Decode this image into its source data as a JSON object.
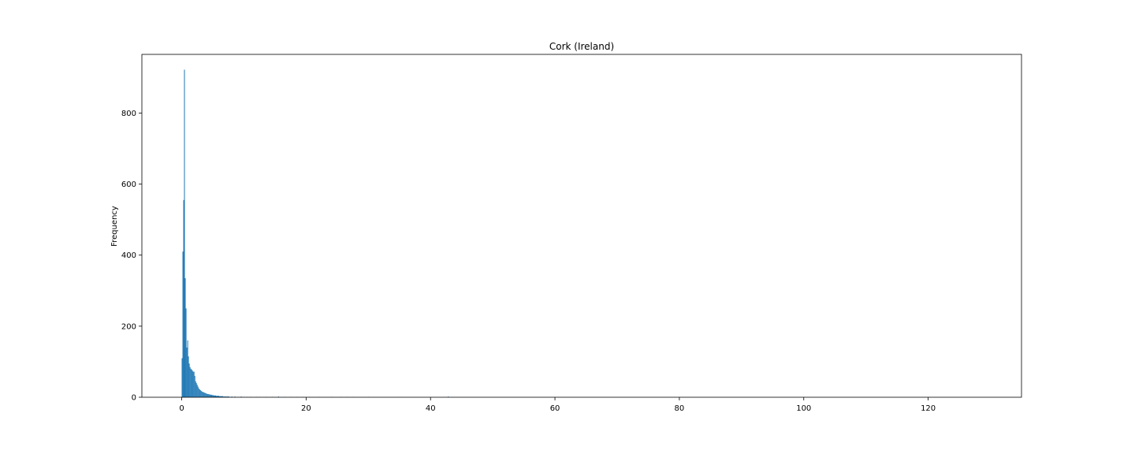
{
  "chart_data": {
    "type": "bar",
    "title": "Cork (Ireland)",
    "xlabel": "",
    "ylabel": "Frequency",
    "xlim": [
      -6.4,
      135.0
    ],
    "ylim": [
      0,
      965
    ],
    "x_ticks": [
      0,
      20,
      40,
      60,
      80,
      100,
      120
    ],
    "y_ticks": [
      0,
      200,
      400,
      600,
      800
    ],
    "grid": false,
    "bar_color": "#1f77b4",
    "bin_width": 0.128,
    "bins": [
      [
        0.0,
        110
      ],
      [
        0.13,
        410
      ],
      [
        0.26,
        555
      ],
      [
        0.38,
        922
      ],
      [
        0.51,
        335
      ],
      [
        0.64,
        250
      ],
      [
        0.77,
        140
      ],
      [
        0.9,
        160
      ],
      [
        1.02,
        115
      ],
      [
        1.15,
        95
      ],
      [
        1.28,
        85
      ],
      [
        1.41,
        80
      ],
      [
        1.54,
        78
      ],
      [
        1.66,
        75
      ],
      [
        1.79,
        72
      ],
      [
        1.92,
        72
      ],
      [
        2.05,
        60
      ],
      [
        2.18,
        45
      ],
      [
        2.3,
        40
      ],
      [
        2.43,
        35
      ],
      [
        2.56,
        30
      ],
      [
        2.69,
        25
      ],
      [
        2.82,
        22
      ],
      [
        2.94,
        20
      ],
      [
        3.07,
        18
      ],
      [
        3.2,
        16
      ],
      [
        3.33,
        15
      ],
      [
        3.46,
        14
      ],
      [
        3.58,
        13
      ],
      [
        3.71,
        12
      ],
      [
        3.84,
        11
      ],
      [
        3.97,
        10
      ],
      [
        4.1,
        9
      ],
      [
        4.22,
        9
      ],
      [
        4.35,
        8
      ],
      [
        4.48,
        8
      ],
      [
        4.61,
        7
      ],
      [
        4.74,
        7
      ],
      [
        4.86,
        6
      ],
      [
        4.99,
        6
      ],
      [
        5.12,
        5
      ],
      [
        5.25,
        5
      ],
      [
        5.38,
        5
      ],
      [
        5.5,
        4
      ],
      [
        5.63,
        4
      ],
      [
        5.76,
        4
      ],
      [
        5.89,
        4
      ],
      [
        6.02,
        3
      ],
      [
        6.14,
        3
      ],
      [
        6.27,
        3
      ],
      [
        6.4,
        3
      ],
      [
        6.53,
        3
      ],
      [
        6.66,
        2
      ],
      [
        6.78,
        2
      ],
      [
        6.91,
        2
      ],
      [
        7.04,
        2
      ],
      [
        7.17,
        2
      ],
      [
        7.3,
        2
      ],
      [
        7.42,
        2
      ],
      [
        7.55,
        2
      ],
      [
        8.0,
        2
      ],
      [
        8.5,
        2
      ],
      [
        9.0,
        1
      ],
      [
        9.5,
        2
      ],
      [
        10.0,
        1
      ],
      [
        10.5,
        1
      ],
      [
        11.0,
        1
      ],
      [
        12.0,
        1
      ],
      [
        12.5,
        1
      ],
      [
        13.5,
        1
      ],
      [
        14.5,
        1
      ],
      [
        15.5,
        2
      ],
      [
        16.5,
        1
      ],
      [
        17.5,
        1
      ],
      [
        18.5,
        1
      ],
      [
        19.5,
        1
      ],
      [
        20.5,
        1
      ],
      [
        22.0,
        1
      ],
      [
        24.0,
        1
      ],
      [
        25.5,
        1
      ],
      [
        26.5,
        1
      ],
      [
        27.5,
        1
      ],
      [
        30.0,
        1
      ],
      [
        35.0,
        1
      ],
      [
        42.8,
        2
      ]
    ]
  }
}
